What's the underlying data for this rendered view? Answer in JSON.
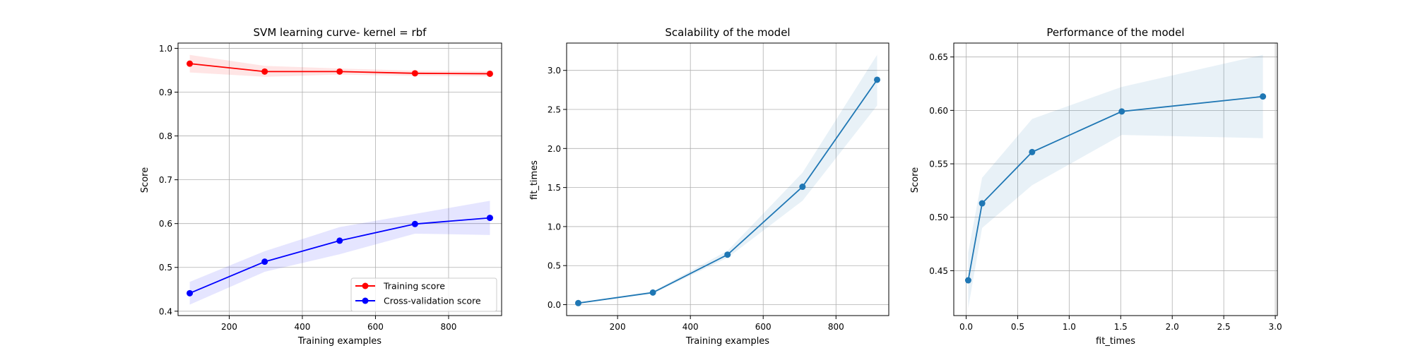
{
  "chart_data": [
    {
      "type": "line",
      "title": "SVM learning curve- kernel = rbf",
      "xlabel": "Training examples",
      "ylabel": "Score",
      "xlim": [
        60,
        945
      ],
      "ylim": [
        0.39,
        1.012
      ],
      "xticks": [
        200,
        400,
        600,
        800
      ],
      "yticks": [
        0.4,
        0.5,
        0.6,
        0.7,
        0.8,
        0.9,
        1.0
      ],
      "ytick_labels": [
        "0.4",
        "0.5",
        "0.6",
        "0.7",
        "0.8",
        "0.9",
        "1.0"
      ],
      "grid": true,
      "legend": "lower-right",
      "x": [
        92,
        297,
        502,
        708,
        913
      ],
      "series": [
        {
          "name": "Training score",
          "color": "#ff0000",
          "values": [
            0.965,
            0.947,
            0.947,
            0.943,
            0.942
          ],
          "band_lower": [
            0.945,
            0.935,
            0.94,
            0.937,
            0.936
          ],
          "band_upper": [
            0.985,
            0.96,
            0.954,
            0.949,
            0.948
          ]
        },
        {
          "name": "Cross-validation score",
          "color": "#0000ff",
          "values": [
            0.441,
            0.513,
            0.561,
            0.599,
            0.613
          ],
          "band_lower": [
            0.415,
            0.49,
            0.53,
            0.577,
            0.574
          ],
          "band_upper": [
            0.467,
            0.537,
            0.592,
            0.622,
            0.652
          ]
        }
      ]
    },
    {
      "type": "line",
      "title": "Scalability of the model",
      "xlabel": "Training examples",
      "ylabel": "fit_times",
      "xlim": [
        60,
        945
      ],
      "ylim": [
        -0.14,
        3.35
      ],
      "xticks": [
        200,
        400,
        600,
        800
      ],
      "yticks": [
        0.0,
        0.5,
        1.0,
        1.5,
        2.0,
        2.5,
        3.0
      ],
      "ytick_labels": [
        "0.0",
        "0.5",
        "1.0",
        "1.5",
        "2.0",
        "2.5",
        "3.0"
      ],
      "grid": true,
      "x": [
        92,
        297,
        502,
        708,
        913
      ],
      "series": [
        {
          "color": "#1f77b4",
          "values": [
            0.02,
            0.155,
            0.64,
            1.51,
            2.88
          ],
          "band_lower": [
            0.015,
            0.14,
            0.6,
            1.33,
            2.55
          ],
          "band_upper": [
            0.025,
            0.17,
            0.69,
            1.69,
            3.2
          ]
        }
      ]
    },
    {
      "type": "line",
      "title": "Performance of the model",
      "xlabel": "fit_times",
      "ylabel": "Score",
      "xlim": [
        -0.12,
        3.02
      ],
      "ylim": [
        0.408,
        0.663
      ],
      "xticks": [
        0.0,
        0.5,
        1.0,
        1.5,
        2.0,
        2.5,
        3.0
      ],
      "xtick_labels": [
        "0.0",
        "0.5",
        "1.0",
        "1.5",
        "2.0",
        "2.5",
        "3.0"
      ],
      "yticks": [
        0.45,
        0.5,
        0.55,
        0.6,
        0.65
      ],
      "ytick_labels": [
        "0.45",
        "0.50",
        "0.55",
        "0.60",
        "0.65"
      ],
      "grid": true,
      "x": [
        0.02,
        0.155,
        0.64,
        1.51,
        2.88
      ],
      "series": [
        {
          "color": "#1f77b4",
          "values": [
            0.441,
            0.513,
            0.561,
            0.599,
            0.613
          ],
          "band_lower": [
            0.415,
            0.49,
            0.53,
            0.577,
            0.574
          ],
          "band_upper": [
            0.467,
            0.537,
            0.592,
            0.622,
            0.652
          ]
        }
      ]
    }
  ]
}
